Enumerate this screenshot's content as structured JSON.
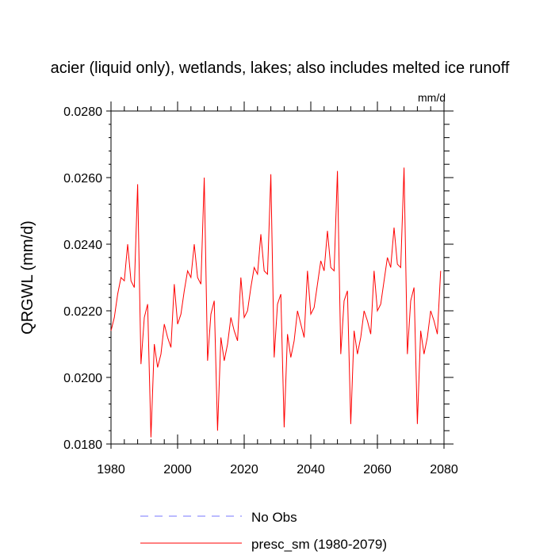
{
  "chart_data": {
    "type": "line",
    "title": "acier (liquid only), wetlands, lakes; also includes melted ice runoff",
    "units_label": "mm/d",
    "ylabel": "QRGWL  (mm/d)",
    "xlabel": "",
    "xlim": [
      1980,
      2080
    ],
    "ylim": [
      0.018,
      0.028
    ],
    "x_ticks": [
      1980,
      2000,
      2020,
      2040,
      2060,
      2080
    ],
    "x_tick_labels": [
      "1980",
      "2000",
      "2020",
      "2040",
      "2060",
      "2080"
    ],
    "y_ticks": [
      0.018,
      0.02,
      0.022,
      0.024,
      0.026,
      0.028
    ],
    "y_tick_labels": [
      "0.0180",
      "0.0200",
      "0.0220",
      "0.0240",
      "0.0260",
      "0.0280"
    ],
    "legend_position": "bottom-center",
    "series": [
      {
        "name": "No Obs",
        "color": "#7777ff",
        "style": "dashed",
        "x": [],
        "values": []
      },
      {
        "name": "presc_sm (1980-2079)",
        "color": "#ff0000",
        "style": "solid",
        "x": [
          1980,
          1981,
          1982,
          1983,
          1984,
          1985,
          1986,
          1987,
          1988,
          1989,
          1990,
          1991,
          1992,
          1993,
          1994,
          1995,
          1996,
          1997,
          1998,
          1999,
          2000,
          2001,
          2002,
          2003,
          2004,
          2005,
          2006,
          2007,
          2008,
          2009,
          2010,
          2011,
          2012,
          2013,
          2014,
          2015,
          2016,
          2017,
          2018,
          2019,
          2020,
          2021,
          2022,
          2023,
          2024,
          2025,
          2026,
          2027,
          2028,
          2029,
          2030,
          2031,
          2032,
          2033,
          2034,
          2035,
          2036,
          2037,
          2038,
          2039,
          2040,
          2041,
          2042,
          2043,
          2044,
          2045,
          2046,
          2047,
          2048,
          2049,
          2050,
          2051,
          2052,
          2053,
          2054,
          2055,
          2056,
          2057,
          2058,
          2059,
          2060,
          2061,
          2062,
          2063,
          2064,
          2065,
          2066,
          2067,
          2068,
          2069,
          2070,
          2071,
          2072,
          2073,
          2074,
          2075,
          2076,
          2077,
          2078,
          2079
        ],
        "values": [
          0.0214,
          0.0218,
          0.0225,
          0.023,
          0.0229,
          0.024,
          0.0229,
          0.0227,
          0.0258,
          0.0204,
          0.0218,
          0.0222,
          0.0182,
          0.021,
          0.0203,
          0.0207,
          0.0216,
          0.0212,
          0.0209,
          0.0228,
          0.0216,
          0.0219,
          0.0226,
          0.0232,
          0.023,
          0.024,
          0.023,
          0.0228,
          0.026,
          0.0205,
          0.0219,
          0.0223,
          0.0184,
          0.0212,
          0.0205,
          0.021,
          0.0218,
          0.0214,
          0.0211,
          0.023,
          0.0218,
          0.022,
          0.0227,
          0.0233,
          0.0231,
          0.0243,
          0.0232,
          0.0231,
          0.0261,
          0.0206,
          0.0222,
          0.0225,
          0.0185,
          0.0213,
          0.0206,
          0.0211,
          0.022,
          0.0216,
          0.0212,
          0.0232,
          0.0219,
          0.0221,
          0.0228,
          0.0235,
          0.0232,
          0.0244,
          0.0233,
          0.0232,
          0.0262,
          0.0207,
          0.0223,
          0.0226,
          0.0186,
          0.0214,
          0.0207,
          0.0212,
          0.022,
          0.0217,
          0.0213,
          0.0232,
          0.022,
          0.0222,
          0.0229,
          0.0236,
          0.0233,
          0.0245,
          0.0234,
          0.0233,
          0.0263,
          0.0207,
          0.0223,
          0.0227,
          0.0186,
          0.0214,
          0.0207,
          0.0212,
          0.022,
          0.0217,
          0.0213,
          0.0232
        ]
      }
    ]
  }
}
